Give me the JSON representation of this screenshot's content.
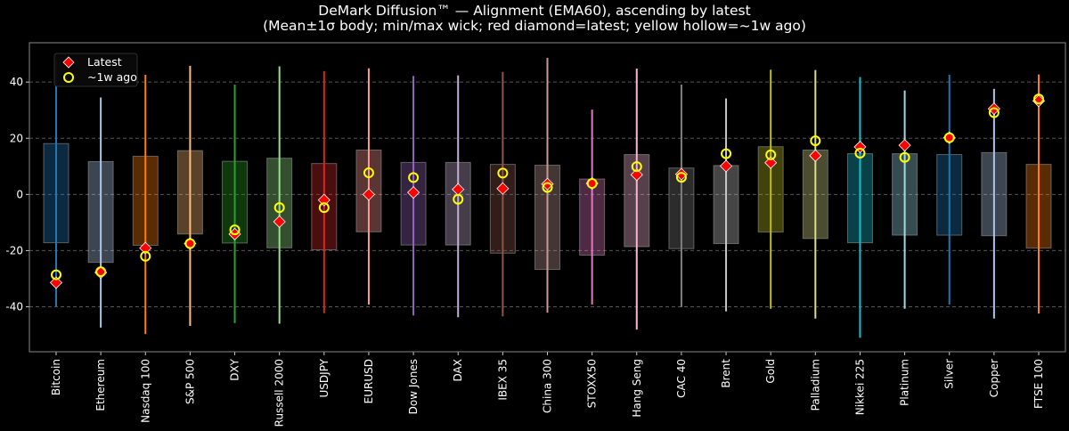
{
  "chart_data": {
    "type": "box",
    "title": "DeMark Diffusion™ — Alignment (EMA60), ascending by latest",
    "subtitle": "(Mean±1σ body; min/max wick; red diamond=latest; yellow hollow=~1w ago)",
    "xlabel": "",
    "ylabel": "",
    "ylim": [
      -56,
      54
    ],
    "yticks": [
      -40,
      -20,
      0,
      20,
      40
    ],
    "grid": true,
    "legend": {
      "placement": "top-left",
      "entries": [
        "Latest",
        "~1w ago"
      ]
    },
    "marker_colors": {
      "latest": "#ff0000",
      "prev": "#ffff00"
    },
    "categories": [
      "Bitcoin",
      "Ethereum",
      "Nasdaq 100",
      "S&P 500",
      "DXY",
      "Russell 2000",
      "USDJPY",
      "EURUSD",
      "Dow Jones",
      "DAX",
      "IBEX 35",
      "China 300",
      "STOXX50",
      "Hang Seng",
      "CAC 40",
      "Brent",
      "Gold",
      "Palladium",
      "Nikkei 225",
      "Platinum",
      "Silver",
      "Copper",
      "FTSE 100"
    ],
    "colors": [
      "#1f77b4",
      "#aec7e8",
      "#ff7f0e",
      "#ffbb78",
      "#2ca02c",
      "#98df8a",
      "#d62728",
      "#ff9896",
      "#9467bd",
      "#c5b0d5",
      "#8c564b",
      "#c49c94",
      "#e377c2",
      "#f7b6d2",
      "#7f7f7f",
      "#c7c7c7",
      "#bcbd22",
      "#dbdb8d",
      "#17becf",
      "#9edae5",
      "#1f77b4",
      "#aec7e8",
      "#ff7f0e"
    ],
    "body_high": [
      18.1,
      11.7,
      13.6,
      15.6,
      11.8,
      12.9,
      11.0,
      15.8,
      11.4,
      11.4,
      10.7,
      10.4,
      5.5,
      14.2,
      9.4,
      10.3,
      17.0,
      15.8,
      14.5,
      14.5,
      14.2,
      14.9,
      10.7
    ],
    "body_low": [
      -17.2,
      -24.2,
      -18.1,
      -14.1,
      -17.3,
      -19.0,
      -19.7,
      -13.3,
      -18.0,
      -18.0,
      -20.9,
      -26.7,
      -21.6,
      -18.6,
      -19.3,
      -17.5,
      -13.4,
      -15.7,
      -17.2,
      -14.5,
      -14.5,
      -14.7,
      -19.1
    ],
    "max": [
      48.1,
      34.5,
      42.6,
      45.8,
      39.1,
      45.6,
      43.9,
      44.9,
      42.2,
      42.4,
      43.6,
      48.6,
      30.2,
      44.8,
      39.1,
      34.2,
      44.4,
      44.3,
      41.8,
      37.0,
      42.6,
      37.6,
      42.7
    ],
    "min": [
      -39.9,
      -47.4,
      -49.7,
      -46.8,
      -45.8,
      -46.0,
      -42.3,
      -39.2,
      -43.1,
      -43.7,
      -43.4,
      -42.1,
      -39.2,
      -48.1,
      -40.1,
      -41.6,
      -40.7,
      -44.2,
      -51.0,
      -40.7,
      -39.2,
      -44.2,
      -42.4
    ],
    "latest": [
      -31.4,
      -27.8,
      -19.1,
      -17.5,
      -14.1,
      -9.7,
      -2.0,
      0.0,
      0.7,
      1.8,
      2.1,
      3.7,
      3.9,
      7.0,
      7.2,
      10.1,
      11.3,
      13.8,
      16.9,
      17.5,
      20.2,
      30.5,
      33.3
    ],
    "prev": [
      -28.6,
      -27.5,
      -22.0,
      -17.5,
      -12.6,
      -4.7,
      -4.7,
      7.7,
      6.0,
      -1.7,
      7.6,
      2.5,
      3.9,
      9.9,
      6.1,
      14.5,
      14.1,
      19.1,
      14.7,
      13.2,
      20.2,
      29.1,
      34.0
    ]
  }
}
